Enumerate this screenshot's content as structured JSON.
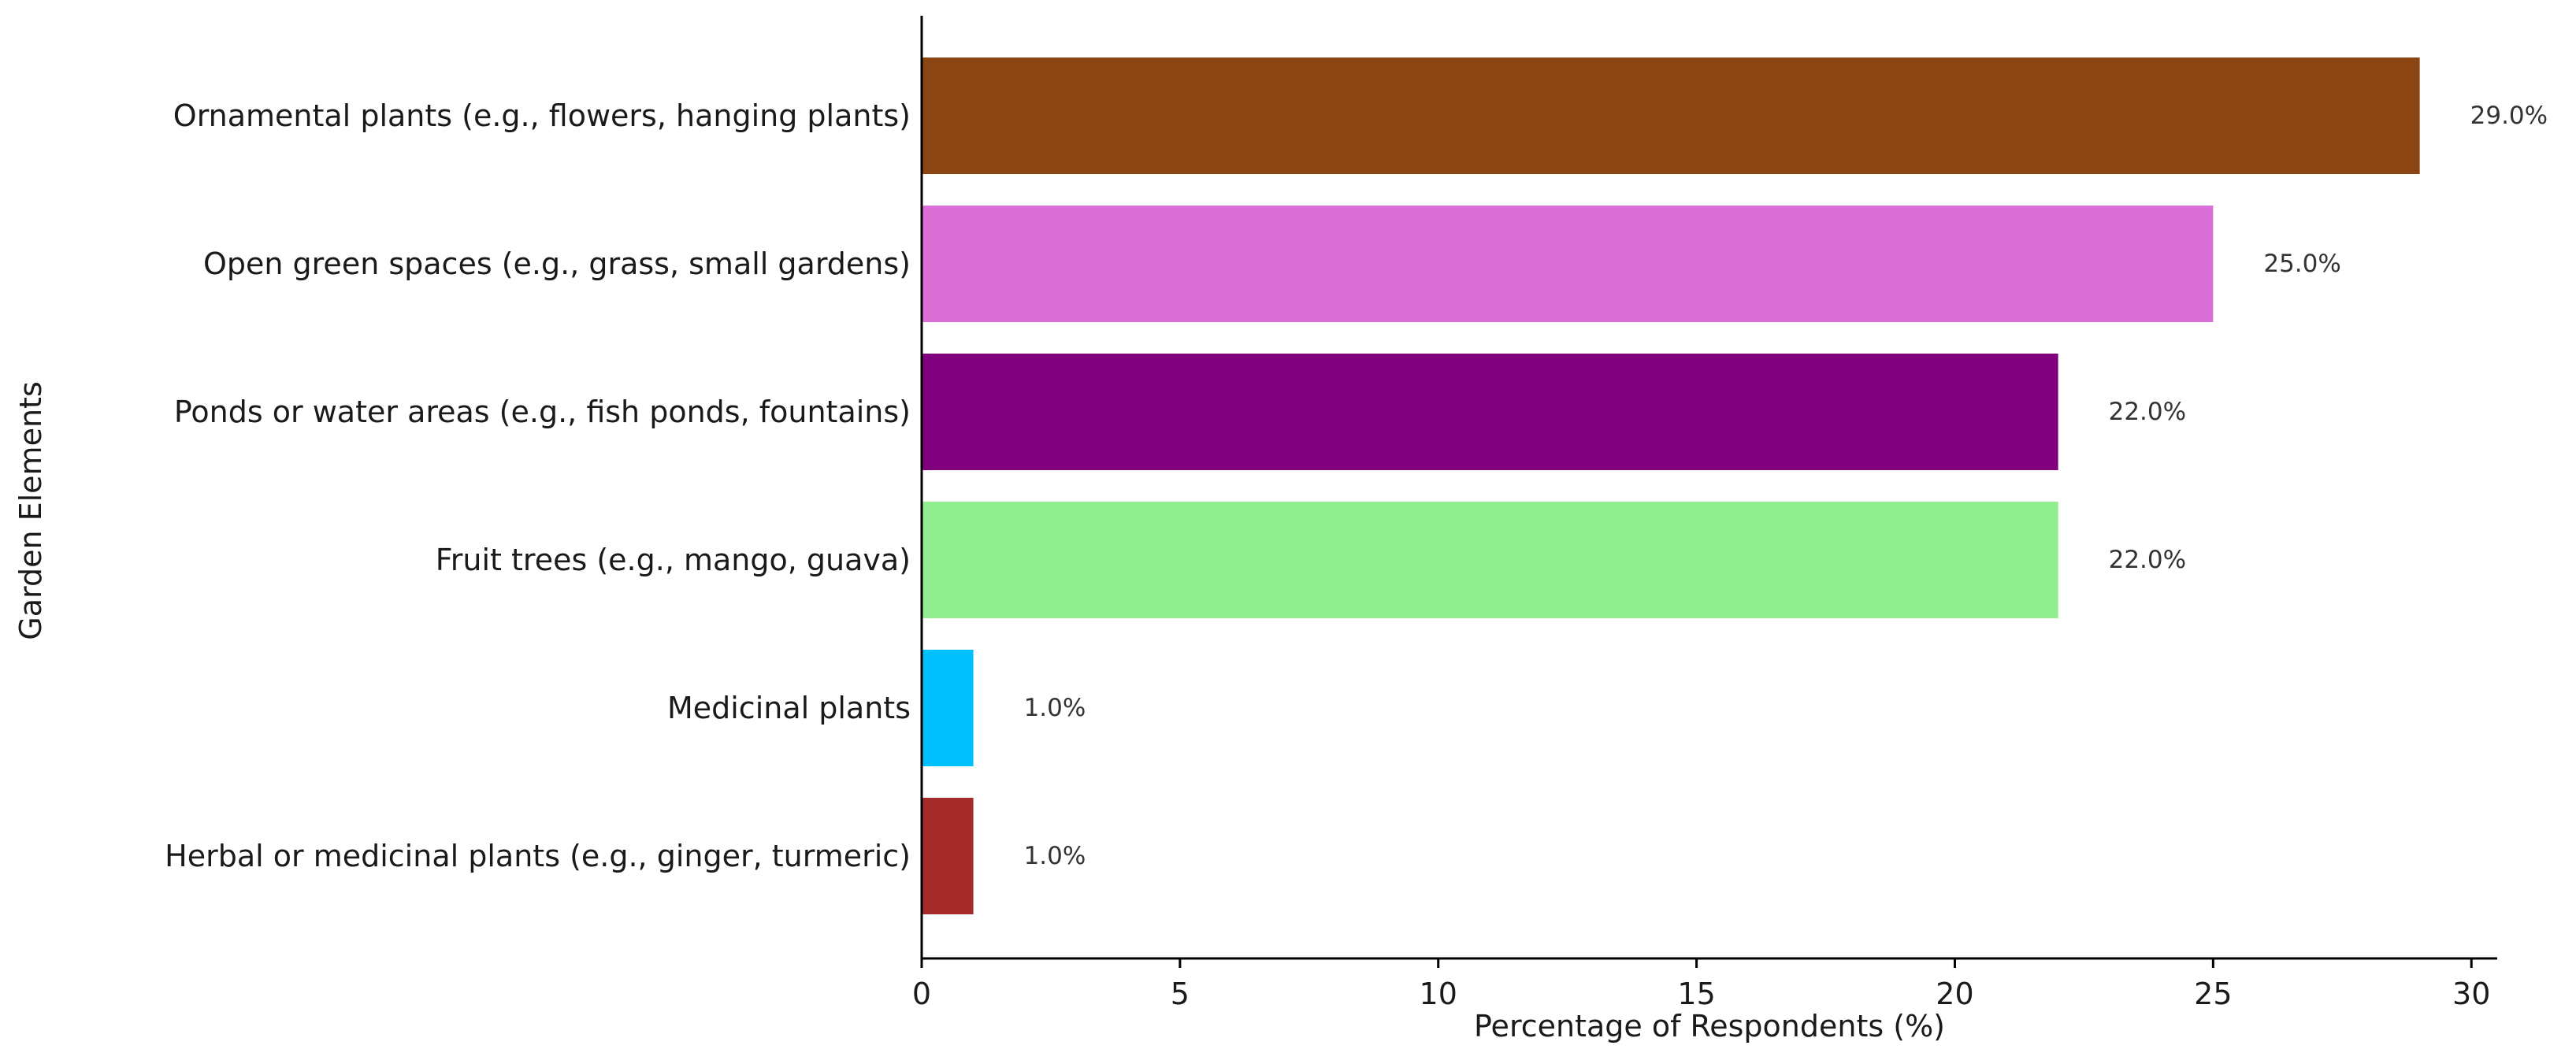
{
  "chart_data": {
    "type": "bar",
    "orientation": "horizontal",
    "xlabel": "Percentage of Respondents (%)",
    "ylabel": "Garden Elements",
    "xlim": [
      0,
      30.5
    ],
    "xticks": [
      0,
      5,
      10,
      15,
      20,
      25,
      30
    ],
    "grid": false,
    "categories": [
      "Ornamental plants (e.g., flowers, hanging plants)",
      "Open green spaces (e.g., grass, small gardens)",
      "Ponds or water areas (e.g., fish ponds, fountains)",
      "Fruit trees (e.g., mango, guava)",
      "Medicinal plants",
      "Herbal or medicinal plants (e.g., ginger, turmeric)"
    ],
    "values": [
      29.0,
      25.0,
      22.0,
      22.0,
      1.0,
      1.0
    ],
    "value_labels": [
      "29.0%",
      "25.0%",
      "22.0%",
      "22.0%",
      "1.0%",
      "1.0%"
    ],
    "colors": [
      "#8b4513",
      "#da70d6",
      "#800080",
      "#90ee90",
      "#00bfff",
      "#a52a2a"
    ]
  }
}
